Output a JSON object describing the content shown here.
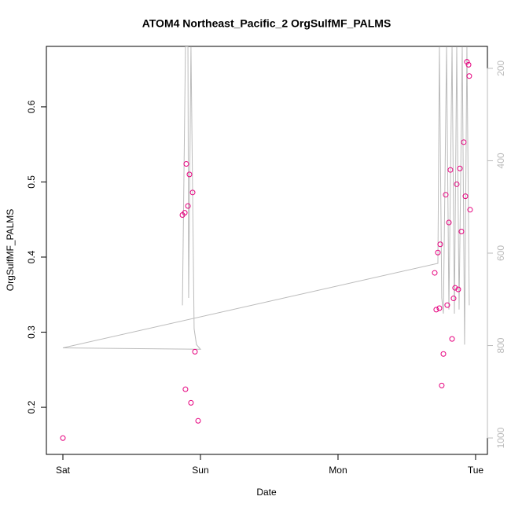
{
  "chart_data": {
    "type": "scatter",
    "title": "ATOM4 Northeast_Pacific_2 OrgSulfMF_PALMS",
    "xlabel": "Date",
    "ylabel": "OrgSulfMF_PALMS",
    "xlim": [
      -0.12,
      3.086
    ],
    "xticks": [
      {
        "value": 0,
        "label": "Sat"
      },
      {
        "value": 1,
        "label": "Sun"
      },
      {
        "value": 2,
        "label": "Mon"
      },
      {
        "value": 3,
        "label": "Tue"
      }
    ],
    "ylim": [
      0.1373,
      0.6805
    ],
    "yticks": [
      0.2,
      0.3,
      0.4,
      0.5,
      0.6
    ],
    "y2lim": [
      1035.6,
      152.5
    ],
    "y2ticks": [
      200,
      400,
      600,
      800,
      1000
    ],
    "y2color": "#bbbbbb",
    "series": [
      {
        "type": "line",
        "axis": "y2",
        "color": "#bbbbbb",
        "x": [
          0.869,
          0.891,
          0.909,
          0.914,
          0.931,
          0.954,
          0.971,
          1.0,
          0,
          2.726,
          2.737,
          2.754,
          2.766,
          2.789,
          2.806,
          2.829,
          2.846,
          2.863,
          2.88,
          2.903,
          2.92,
          2.937,
          2.954
        ],
        "values": [
          713,
          153,
          153,
          697,
          153,
          764,
          798,
          808,
          805,
          622,
          153,
          697,
          731,
          153,
          722,
          153,
          731,
          153,
          722,
          153,
          798,
          153,
          713
        ]
      },
      {
        "type": "scatter",
        "color": "#e6007e",
        "x": [
          0,
          0.869,
          0.886,
          0.897,
          0.909,
          0.92,
          0.943,
          0.891,
          0.931,
          0.96,
          0.983,
          2.703,
          2.714,
          2.726,
          2.737,
          2.743,
          2.754,
          2.766,
          2.783,
          2.794,
          2.806,
          2.817,
          2.829,
          2.84,
          2.851,
          2.863,
          2.874,
          2.886,
          2.897,
          2.914,
          2.926,
          2.937,
          2.949,
          2.954,
          2.96
        ],
        "values": [
          0.159,
          0.456,
          0.459,
          0.524,
          0.468,
          0.51,
          0.486,
          0.224,
          0.206,
          0.274,
          0.182,
          0.379,
          0.33,
          0.406,
          0.332,
          0.417,
          0.229,
          0.271,
          0.483,
          0.336,
          0.446,
          0.516,
          0.291,
          0.345,
          0.359,
          0.497,
          0.357,
          0.518,
          0.434,
          0.553,
          0.481,
          0.66,
          0.656,
          0.641,
          0.463
        ]
      }
    ]
  }
}
